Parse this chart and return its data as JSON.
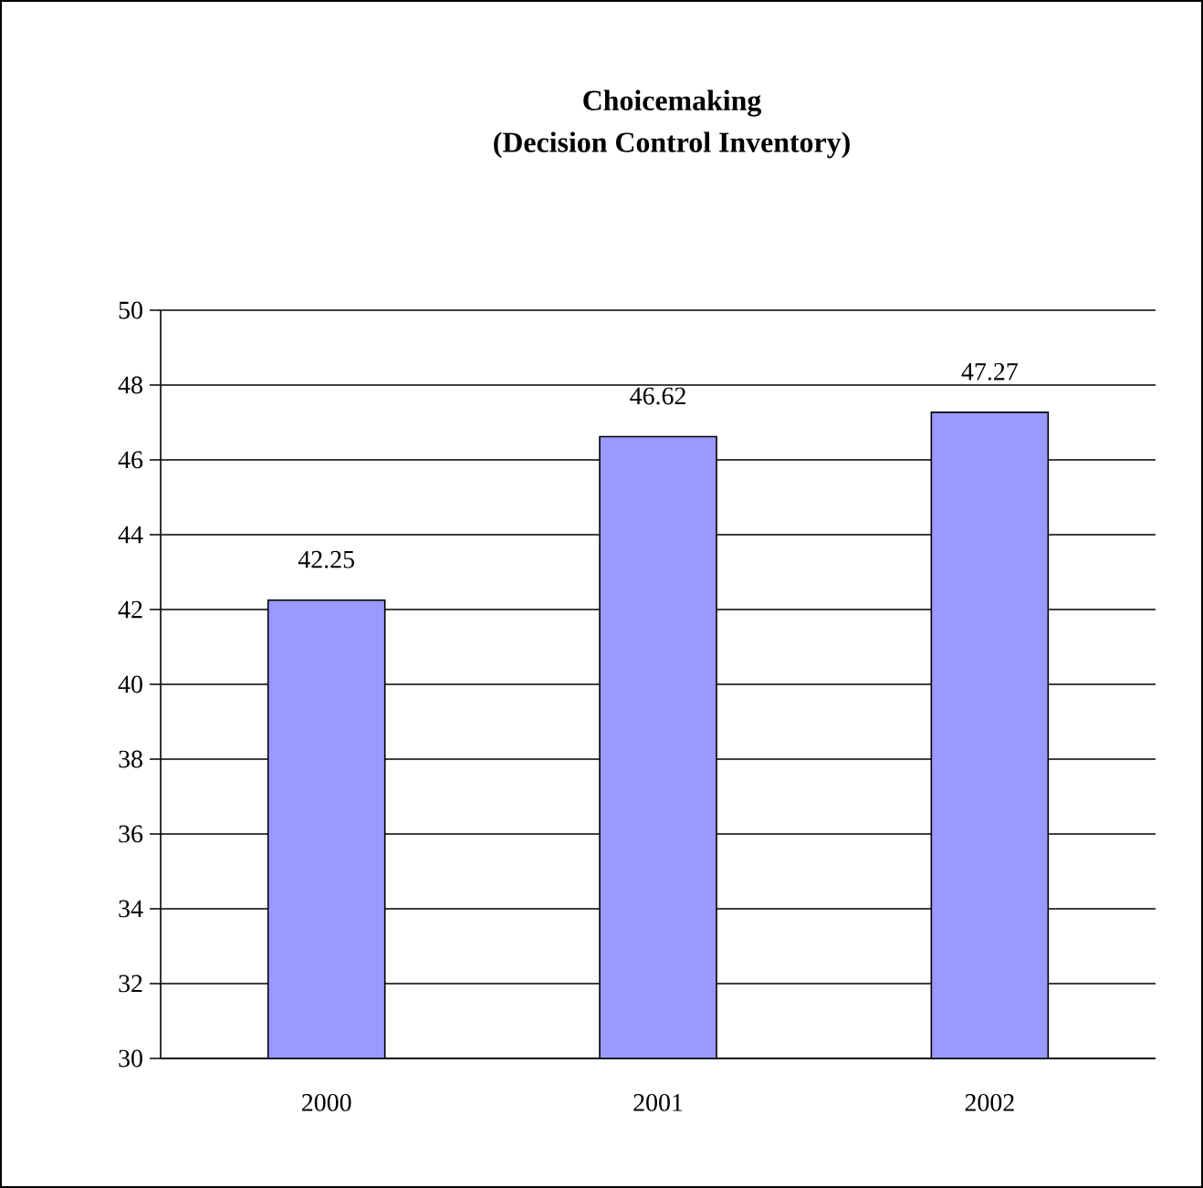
{
  "chart_data": {
    "type": "bar",
    "title": "Choicemaking",
    "subtitle": "(Decision Control Inventory)",
    "categories": [
      "2000",
      "2001",
      "2002"
    ],
    "values": [
      42.25,
      46.62,
      47.27
    ],
    "color": "#9999ff",
    "ylim": [
      30,
      50
    ],
    "yticks": [
      30,
      32,
      34,
      36,
      38,
      40,
      42,
      44,
      46,
      48,
      50
    ],
    "grid": "y",
    "data_labels": true
  }
}
